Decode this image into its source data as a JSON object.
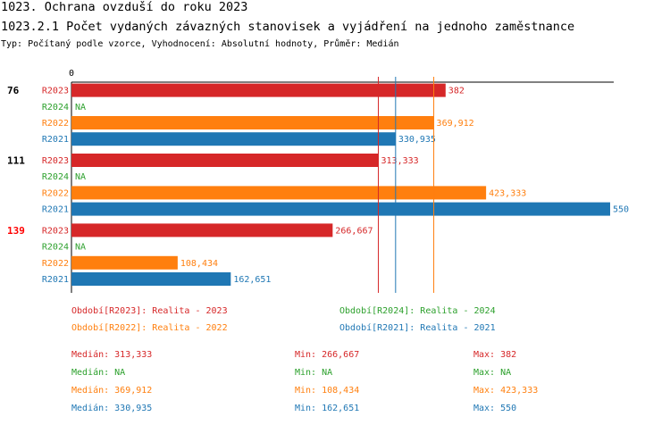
{
  "header": {
    "title": "1023. Ochrana ovzduší do roku 2023",
    "subtitle": "1023.2.1 Počet vydaných závazných stanovisek a vyjádření na jednoho zaměstnance",
    "meta": "Typ: Počítaný podle vzorce, Vyhodnocení: Absolutní hodnoty, Průměr: Medián"
  },
  "chart_data": {
    "type": "bar",
    "orientation": "horizontal",
    "x_tick_labels": [
      "0"
    ],
    "xlim": [
      0,
      550
    ],
    "groups": [
      {
        "label": "76",
        "highlight": false,
        "rows": [
          {
            "series": "R2023",
            "value": 382,
            "label": "382"
          },
          {
            "series": "R2024",
            "value": null,
            "label": "NA"
          },
          {
            "series": "R2022",
            "value": 369.912,
            "label": "369,912"
          },
          {
            "series": "R2021",
            "value": 330.935,
            "label": "330,935"
          }
        ]
      },
      {
        "label": "111",
        "highlight": false,
        "rows": [
          {
            "series": "R2023",
            "value": 313.333,
            "label": "313,333"
          },
          {
            "series": "R2024",
            "value": null,
            "label": "NA"
          },
          {
            "series": "R2022",
            "value": 423.333,
            "label": "423,333"
          },
          {
            "series": "R2021",
            "value": 550,
            "label": "550"
          }
        ]
      },
      {
        "label": "139",
        "highlight": true,
        "rows": [
          {
            "series": "R2023",
            "value": 266.667,
            "label": "266,667"
          },
          {
            "series": "R2024",
            "value": null,
            "label": "NA"
          },
          {
            "series": "R2022",
            "value": 108.434,
            "label": "108,434"
          },
          {
            "series": "R2021",
            "value": 162.651,
            "label": "162,651"
          }
        ]
      }
    ],
    "median_lines": [
      {
        "series": "R2023",
        "value": 313.333
      },
      {
        "series": "R2022",
        "value": 369.912
      },
      {
        "series": "R2021",
        "value": 330.935
      }
    ],
    "colors": {
      "R2023": "#d62728",
      "R2024": "#2ca02c",
      "R2022": "#ff7f0e",
      "R2021": "#1f77b4",
      "highlight": "#ff0000"
    },
    "legend": [
      {
        "series": "R2023",
        "text": "Období[R2023]: Realita - 2023"
      },
      {
        "series": "R2024",
        "text": "Období[R2024]: Realita - 2024"
      },
      {
        "series": "R2022",
        "text": "Období[R2022]: Realita - 2022"
      },
      {
        "series": "R2021",
        "text": "Období[R2021]: Realita - 2021"
      }
    ],
    "stats": [
      {
        "series": "R2023",
        "median": "Medián: 313,333",
        "min": "Min: 266,667",
        "max": "Max: 382"
      },
      {
        "series": "R2024",
        "median": "Medián: NA",
        "min": "Min: NA",
        "max": "Max: NA"
      },
      {
        "series": "R2022",
        "median": "Medián: 369,912",
        "min": "Min: 108,434",
        "max": "Max: 423,333"
      },
      {
        "series": "R2021",
        "median": "Medián: 330,935",
        "min": "Min: 162,651",
        "max": "Max: 550"
      }
    ]
  }
}
